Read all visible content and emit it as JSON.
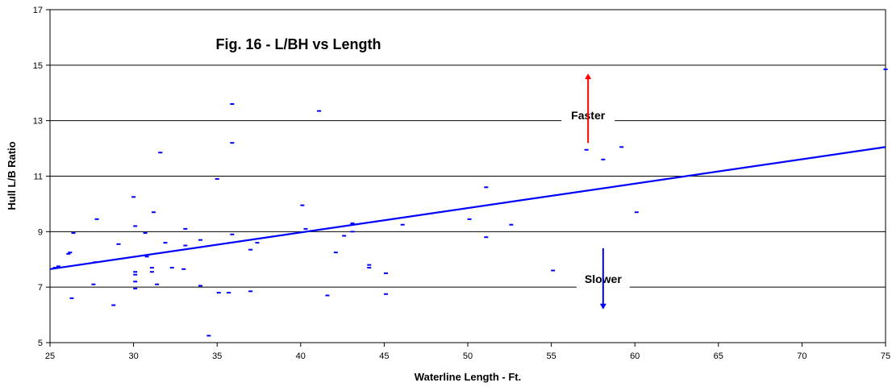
{
  "chart_data": {
    "type": "scatter",
    "title": "Fig. 16 - L/BH vs Length",
    "xlabel": "Waterline Length - Ft.",
    "ylabel": "Hull L/B Ratio",
    "xlim": [
      25,
      75
    ],
    "ylim": [
      5,
      17
    ],
    "xticks": [
      25,
      30,
      35,
      40,
      45,
      50,
      55,
      60,
      65,
      70,
      75
    ],
    "yticks": [
      5,
      7,
      9,
      11,
      13,
      15,
      17
    ],
    "grid": "horizontal",
    "point_color": "#0000FF",
    "trend_color": "#0000FF",
    "points": [
      [
        25.3,
        7.7
      ],
      [
        25.5,
        7.75
      ],
      [
        26.1,
        8.2
      ],
      [
        26.2,
        8.25
      ],
      [
        26.4,
        8.95
      ],
      [
        26.3,
        6.6
      ],
      [
        27.6,
        7.1
      ],
      [
        27.7,
        7.9
      ],
      [
        27.8,
        9.45
      ],
      [
        28.8,
        6.35
      ],
      [
        29.1,
        8.55
      ],
      [
        30.0,
        10.25
      ],
      [
        30.1,
        9.2
      ],
      [
        30.1,
        7.55
      ],
      [
        30.1,
        7.45
      ],
      [
        30.1,
        7.2
      ],
      [
        30.1,
        6.95
      ],
      [
        30.7,
        8.95
      ],
      [
        30.8,
        8.1
      ],
      [
        31.1,
        7.7
      ],
      [
        31.1,
        7.55
      ],
      [
        31.2,
        9.7
      ],
      [
        31.4,
        7.1
      ],
      [
        31.6,
        11.85
      ],
      [
        31.9,
        8.6
      ],
      [
        32.3,
        7.7
      ],
      [
        33.0,
        7.65
      ],
      [
        33.1,
        9.1
      ],
      [
        33.1,
        8.5
      ],
      [
        34.0,
        8.7
      ],
      [
        34.0,
        7.05
      ],
      [
        34.5,
        5.25
      ],
      [
        35.0,
        10.9
      ],
      [
        35.1,
        6.8
      ],
      [
        35.7,
        6.8
      ],
      [
        35.9,
        13.6
      ],
      [
        35.9,
        12.2
      ],
      [
        35.9,
        8.9
      ],
      [
        37.0,
        8.35
      ],
      [
        37.0,
        6.85
      ],
      [
        37.4,
        8.6
      ],
      [
        40.1,
        9.95
      ],
      [
        40.3,
        9.1
      ],
      [
        41.1,
        13.35
      ],
      [
        41.6,
        6.7
      ],
      [
        42.1,
        8.25
      ],
      [
        42.6,
        8.85
      ],
      [
        43.1,
        9.3
      ],
      [
        43.1,
        9.0
      ],
      [
        44.1,
        7.8
      ],
      [
        44.1,
        7.7
      ],
      [
        45.1,
        7.5
      ],
      [
        45.1,
        6.75
      ],
      [
        46.1,
        9.25
      ],
      [
        50.1,
        9.45
      ],
      [
        51.1,
        10.6
      ],
      [
        51.1,
        8.8
      ],
      [
        52.6,
        9.25
      ],
      [
        55.1,
        7.6
      ],
      [
        57.1,
        11.95
      ],
      [
        58.1,
        11.6
      ],
      [
        59.2,
        12.05
      ],
      [
        60.1,
        9.7
      ],
      [
        75.0,
        14.85
      ]
    ],
    "trendline": {
      "x": [
        25,
        75
      ],
      "y": [
        7.65,
        12.05
      ]
    },
    "annotations": [
      {
        "text": "Faster",
        "arrow": "up",
        "arrow_color": "#FF0000",
        "x": 57.2,
        "y": 13.2,
        "arrow_from": 12.2,
        "arrow_to": 14.7
      },
      {
        "text": "Slower",
        "arrow": "down",
        "arrow_color": "#0000FF",
        "x": 58.1,
        "y": 7.3,
        "arrow_from": 8.4,
        "arrow_to": 6.2
      }
    ]
  }
}
